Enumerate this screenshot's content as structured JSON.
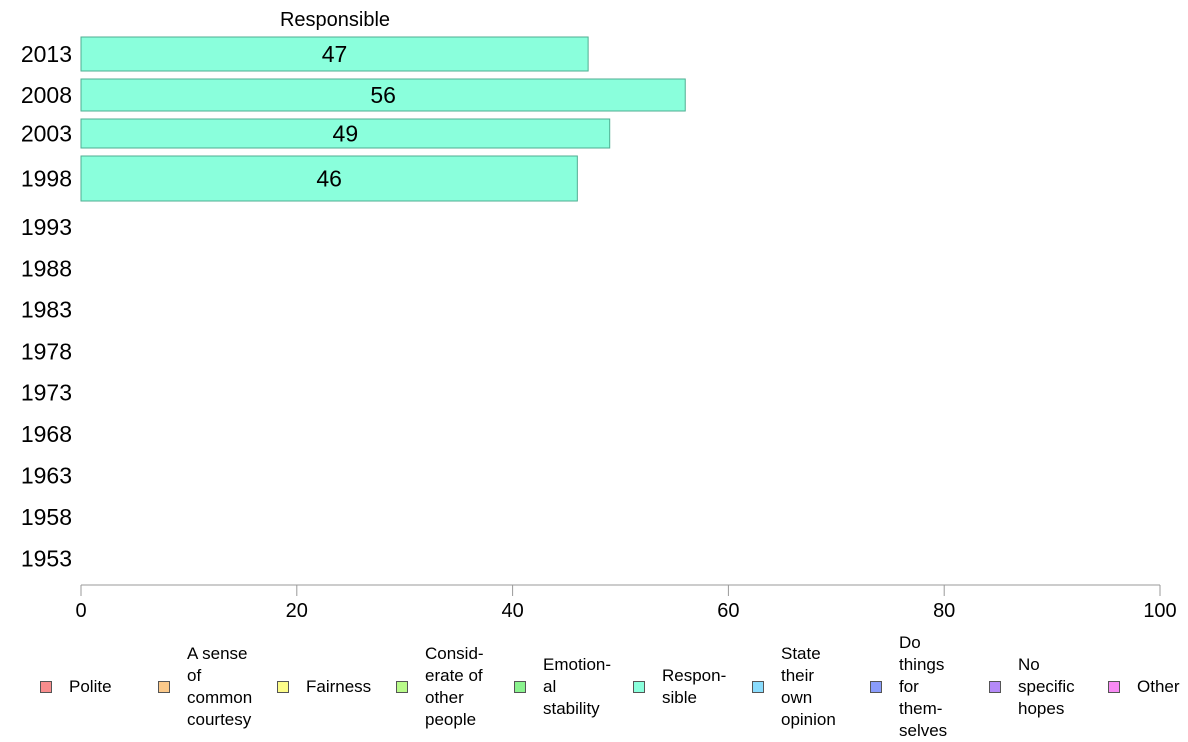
{
  "chart_data": {
    "type": "bar",
    "orientation": "horizontal",
    "title": "Responsible",
    "categories": [
      "2013",
      "2008",
      "2003",
      "1998",
      "1993",
      "1988",
      "1983",
      "1978",
      "1973",
      "1968",
      "1963",
      "1958",
      "1953"
    ],
    "series": [
      {
        "name": "Responsible",
        "values": [
          47,
          56,
          49,
          46,
          null,
          null,
          null,
          null,
          null,
          null,
          null,
          null,
          null
        ],
        "color": "#8affdc"
      }
    ],
    "data_labels": [
      "47",
      "56",
      "49",
      "46"
    ],
    "xlim": [
      0,
      100
    ],
    "xticks": [
      "0",
      "20",
      "40",
      "60",
      "80",
      "100"
    ],
    "grid": false,
    "legend_position": "bottom",
    "legend": [
      {
        "label": "Polite",
        "color": "#f88d8d"
      },
      {
        "label": "A sense\nof\ncommon\ncourtesy",
        "color": "#fbc98a"
      },
      {
        "label": "Fairness",
        "color": "#fdfd8a"
      },
      {
        "label": "Consid-\nerate of\nother\npeople",
        "color": "#b9fb8a"
      },
      {
        "label": "Emotion-\nal\nstability",
        "color": "#8af38e"
      },
      {
        "label": "Respon-\nsible",
        "color": "#8affdc"
      },
      {
        "label": "State\ntheir\nown\nopinion",
        "color": "#8adcfd"
      },
      {
        "label": "Do\nthings\nfor\nthem-\nselves",
        "color": "#8a9cfb"
      },
      {
        "label": "No\nspecific\nhopes",
        "color": "#b48af8"
      },
      {
        "label": "Other",
        "color": "#f88af3"
      }
    ]
  }
}
